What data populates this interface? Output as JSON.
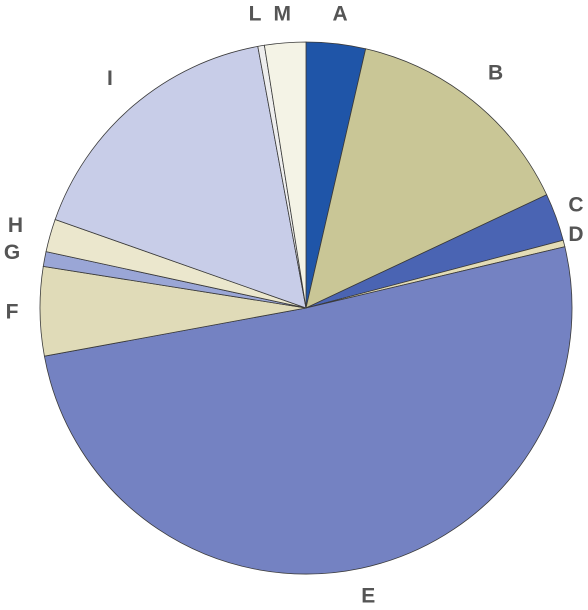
{
  "chart_data": {
    "type": "pie",
    "title": "",
    "start_angle_deg": 0,
    "direction": "clockwise",
    "slices": [
      {
        "label": "A",
        "value": 3.6,
        "color": "#1f55a8"
      },
      {
        "label": "B",
        "value": 14.4,
        "color": "#c9c696"
      },
      {
        "label": "C",
        "value": 2.9,
        "color": "#4a64b3"
      },
      {
        "label": "D",
        "value": 0.4,
        "color": "#e3dcb6"
      },
      {
        "label": "E",
        "value": 50.8,
        "color": "#7482c2"
      },
      {
        "label": "F",
        "value": 5.4,
        "color": "#e0dbb8"
      },
      {
        "label": "G",
        "value": 0.9,
        "color": "#9aa6d6"
      },
      {
        "label": "H",
        "value": 2.0,
        "color": "#ebe7cd"
      },
      {
        "label": "I",
        "value": 16.7,
        "color": "#c8cde8"
      },
      {
        "label": "L",
        "value": 0.4,
        "color": "#eeeeee"
      },
      {
        "label": "M",
        "value": 2.5,
        "color": "#f4f3e6"
      }
    ]
  }
}
